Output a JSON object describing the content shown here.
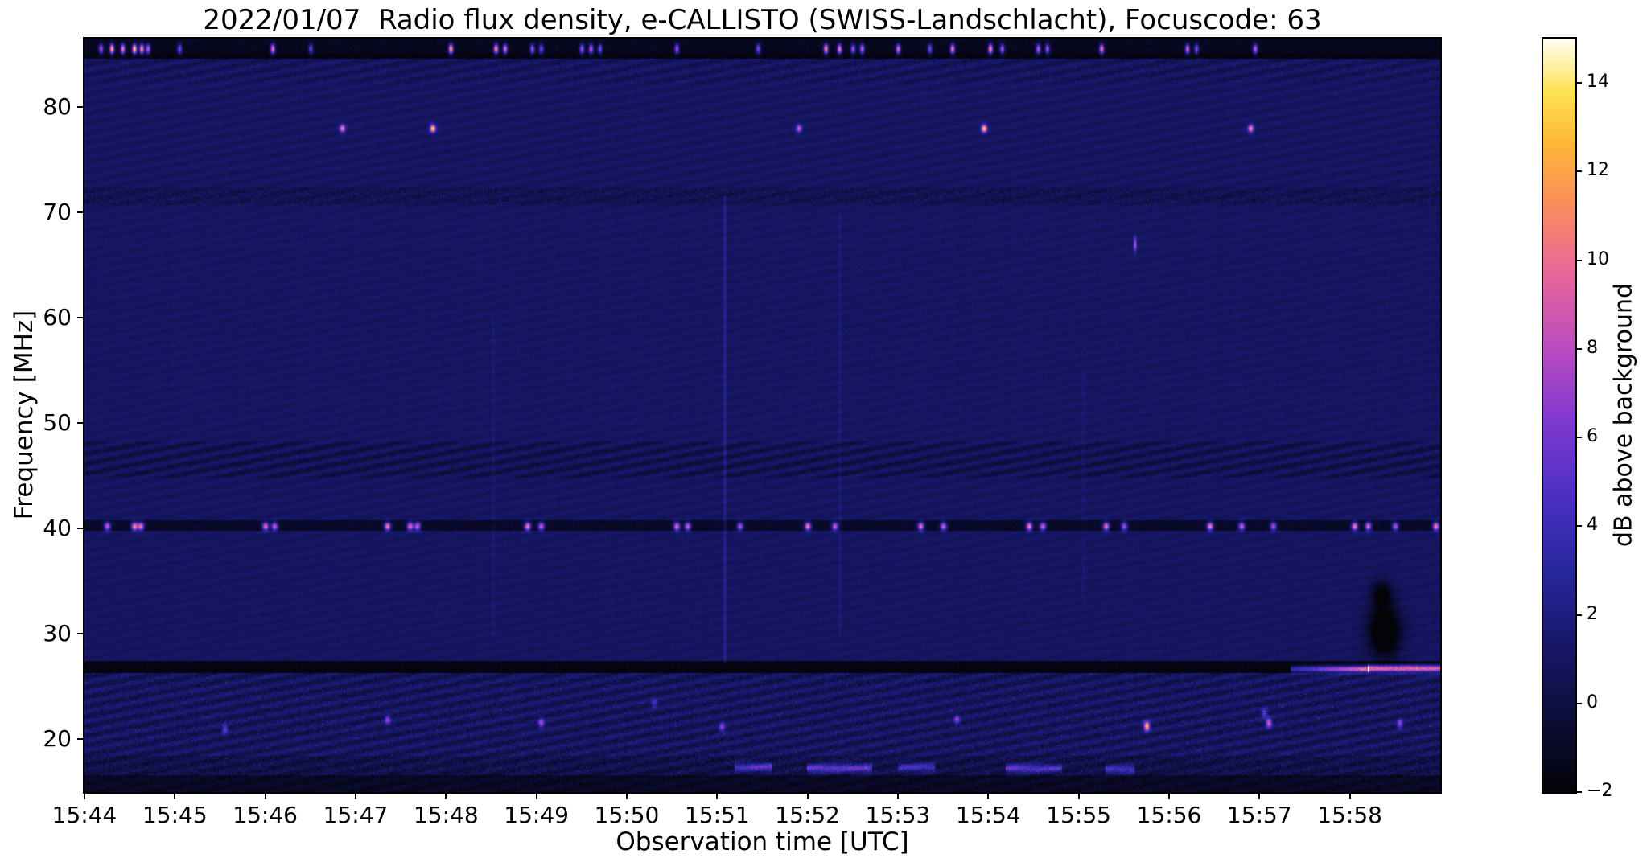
{
  "chart_data": {
    "type": "heatmap",
    "title": "2022/01/07  Radio flux density, e-CALLISTO (SWISS-Landschlacht), Focuscode: 63",
    "xlabel": "Observation time [UTC]",
    "ylabel": "Frequency [MHz]",
    "colorbar_label": "dB above background",
    "x_ticks": [
      "15:44",
      "15:45",
      "15:46",
      "15:47",
      "15:48",
      "15:49",
      "15:50",
      "15:51",
      "15:52",
      "15:53",
      "15:54",
      "15:55",
      "15:56",
      "15:57",
      "15:58"
    ],
    "x_start_min": 0,
    "x_end_min": 15,
    "y_ticks": [
      80,
      70,
      60,
      50,
      40,
      30,
      20
    ],
    "freq_top_mhz": 86.5,
    "freq_bottom_mhz": 15.0,
    "value_range_db": [
      -2,
      15
    ],
    "colorbar_ticks": [
      14,
      12,
      10,
      8,
      6,
      4,
      2,
      0,
      -2
    ],
    "background_db": 1.1,
    "seed": 20220107,
    "colormap_stops": [
      [
        0.0,
        3,
        3,
        8
      ],
      [
        0.1,
        13,
        13,
        58
      ],
      [
        0.2,
        24,
        24,
        108
      ],
      [
        0.3,
        40,
        40,
        160
      ],
      [
        0.4,
        80,
        48,
        198
      ],
      [
        0.5,
        132,
        58,
        208
      ],
      [
        0.6,
        192,
        78,
        188
      ],
      [
        0.7,
        236,
        106,
        148
      ],
      [
        0.78,
        250,
        142,
        92
      ],
      [
        0.86,
        253,
        182,
        56
      ],
      [
        0.93,
        254,
        226,
        84
      ],
      [
        1.0,
        255,
        255,
        245
      ]
    ],
    "bands": [
      {
        "f": [
          85.1,
          86.6
        ],
        "base": -1.2,
        "noise": 0.9,
        "ripple": 0.1
      },
      {
        "f": [
          84.6,
          85.1
        ],
        "base": -1.7,
        "noise": 0.4,
        "ripple": 0
      },
      {
        "f": [
          82.3,
          84.6
        ],
        "base": 0.9,
        "noise": 1.6,
        "ripple": 0.5,
        "sparkle": [
          0.004,
          3
        ]
      },
      {
        "f": [
          72.4,
          82.3
        ],
        "base": 1.0,
        "noise": 0.9,
        "ripple": 0.3
      },
      {
        "f": [
          70.7,
          72.4
        ],
        "base": 0.5,
        "noise": 2.2,
        "ripple": 0.3,
        "sparkle": [
          0.01,
          3
        ]
      },
      {
        "f": [
          48.3,
          70.7
        ],
        "base": 1.05,
        "noise": 0.85,
        "ripple": 0.2
      },
      {
        "f": [
          44.8,
          48.3
        ],
        "base": 0.55,
        "noise": 1.3,
        "ripple": 0.75
      },
      {
        "f": [
          40.8,
          44.8
        ],
        "base": 1.0,
        "noise": 0.9,
        "ripple": 0.25
      },
      {
        "f": [
          39.8,
          40.8
        ],
        "base": -0.9,
        "noise": 0.8,
        "ripple": 0.1,
        "sparkle": [
          0.02,
          3
        ]
      },
      {
        "f": [
          27.4,
          39.8
        ],
        "base": 1.0,
        "noise": 0.85,
        "ripple": 0.2
      },
      {
        "f": [
          26.3,
          27.4
        ],
        "base": -1.6,
        "noise": 0.6,
        "ripple": 0
      },
      {
        "f": [
          18.4,
          26.3
        ],
        "base": 0.9,
        "noise": 2.1,
        "ripple": 0.7,
        "sparkle": [
          0.02,
          3.5
        ]
      },
      {
        "f": [
          16.6,
          18.4
        ],
        "base": 0.2,
        "noise": 2.6,
        "ripple": 0.5,
        "sparkle": [
          0.03,
          3
        ]
      },
      {
        "f": [
          15.0,
          16.6
        ],
        "base": -1.0,
        "noise": 1.6,
        "ripple": 0.3
      }
    ],
    "spot_groups": [
      {
        "f": 85.55,
        "st": 0.018,
        "sf": 0.33,
        "items": [
          [
            0.18,
            9
          ],
          [
            0.3,
            14
          ],
          [
            0.42,
            12
          ],
          [
            0.55,
            15
          ],
          [
            0.63,
            13
          ],
          [
            0.7,
            10
          ],
          [
            1.05,
            8
          ],
          [
            2.08,
            12
          ],
          [
            2.5,
            7
          ],
          [
            4.05,
            14
          ],
          [
            4.55,
            13
          ],
          [
            4.65,
            11
          ],
          [
            4.95,
            9
          ],
          [
            5.05,
            8
          ],
          [
            5.5,
            9
          ],
          [
            5.6,
            10
          ],
          [
            5.7,
            8
          ],
          [
            6.55,
            9
          ],
          [
            7.45,
            8
          ],
          [
            8.2,
            13
          ],
          [
            8.35,
            12
          ],
          [
            8.5,
            9
          ],
          [
            8.6,
            10
          ],
          [
            9.0,
            11
          ],
          [
            9.35,
            8
          ],
          [
            9.6,
            12
          ],
          [
            10.02,
            13
          ],
          [
            10.15,
            9
          ],
          [
            10.55,
            10
          ],
          [
            10.65,
            9
          ],
          [
            11.25,
            12
          ],
          [
            12.2,
            11
          ],
          [
            12.3,
            8
          ],
          [
            12.95,
            10
          ]
        ]
      },
      {
        "f": 78.0,
        "st": 0.022,
        "sf": 0.26,
        "items": [
          [
            2.85,
            10
          ],
          [
            3.85,
            13
          ],
          [
            7.9,
            8
          ],
          [
            9.95,
            13
          ],
          [
            12.9,
            10
          ]
        ]
      },
      {
        "f": 67.0,
        "st": 0.012,
        "sf": 0.5,
        "items": [
          [
            11.62,
            7
          ]
        ]
      },
      {
        "f": 40.25,
        "st": 0.025,
        "sf": 0.27,
        "items": [
          [
            0.25,
            10
          ],
          [
            0.55,
            12
          ],
          [
            0.62,
            11
          ],
          [
            2.0,
            11
          ],
          [
            2.1,
            10
          ],
          [
            3.35,
            12
          ],
          [
            3.6,
            11
          ],
          [
            3.68,
            10
          ],
          [
            4.9,
            12
          ],
          [
            5.05,
            10
          ],
          [
            6.55,
            11
          ],
          [
            6.67,
            10
          ],
          [
            7.25,
            9
          ],
          [
            8.0,
            12
          ],
          [
            8.3,
            10
          ],
          [
            9.25,
            11
          ],
          [
            9.5,
            10
          ],
          [
            10.45,
            12
          ],
          [
            10.6,
            10
          ],
          [
            11.3,
            11
          ],
          [
            11.5,
            9
          ],
          [
            12.45,
            12
          ],
          [
            12.8,
            10
          ],
          [
            13.15,
            9
          ],
          [
            14.05,
            12
          ],
          [
            14.2,
            11
          ],
          [
            14.5,
            9
          ],
          [
            14.95,
            12
          ]
        ]
      },
      {
        "st": 0.022,
        "sf": 0.3,
        "items": [
          [
            5.05,
            21.6,
            7
          ],
          [
            7.05,
            21.2,
            6
          ],
          [
            9.65,
            21.9,
            6
          ],
          [
            11.75,
            21.3,
            13
          ],
          [
            13.1,
            21.6,
            9
          ],
          [
            3.35,
            21.9,
            6
          ],
          [
            13.05,
            22.5,
            5
          ],
          [
            6.3,
            23.5,
            4
          ],
          [
            1.55,
            21.0,
            5
          ],
          [
            14.55,
            21.5,
            6
          ]
        ]
      }
    ],
    "streaks": [
      [
        13.35,
        14.2,
        26.7,
        0.22,
        5,
        12
      ],
      [
        14.2,
        15.0,
        26.75,
        0.24,
        12,
        11
      ],
      [
        7.2,
        7.6,
        17.4,
        0.28,
        4,
        5
      ],
      [
        8.0,
        8.7,
        17.3,
        0.28,
        5,
        5
      ],
      [
        9.0,
        9.4,
        17.4,
        0.28,
        4,
        4
      ],
      [
        10.2,
        10.8,
        17.3,
        0.28,
        5,
        4
      ],
      [
        11.3,
        11.6,
        17.2,
        0.28,
        4,
        4
      ]
    ],
    "vlines": [
      [
        7.08,
        27.5,
        71.5,
        0.012,
        1.5
      ],
      [
        8.35,
        30.0,
        70.0,
        0.01,
        0.8
      ],
      [
        4.52,
        30.0,
        60.0,
        0.01,
        0.6
      ],
      [
        11.05,
        33.0,
        55.0,
        0.009,
        0.6
      ]
    ],
    "dark_blobs": [
      [
        14.38,
        30.3,
        0.12,
        1.7,
        -5
      ],
      [
        14.35,
        33.8,
        0.08,
        0.9,
        -3
      ]
    ]
  }
}
